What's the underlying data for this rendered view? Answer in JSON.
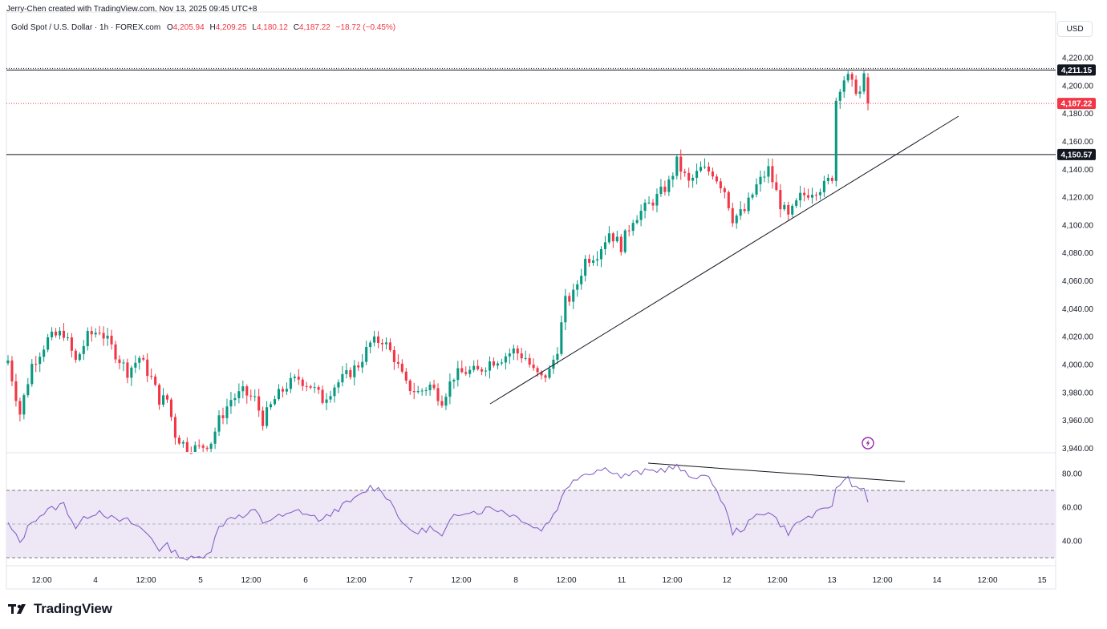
{
  "credit": "Jerry-Chen created with TradingView.com, Nov 13, 2025 09:45 UTC+8",
  "legend": {
    "symbol": "Gold Spot / U.S. Dollar · 1h · FOREX.com",
    "o_label": "O",
    "o": "4,205.94",
    "h_label": "H",
    "h": "4,209.25",
    "l_label": "L",
    "l": "4,180.12",
    "c_label": "C",
    "c": "4,187.22",
    "change": "−18.72 (−0.45%)"
  },
  "currency": "USD",
  "footer": {
    "logo_text": "TradingView"
  },
  "colors": {
    "up": "#089981",
    "down": "#f23645",
    "rsi": "#7e57c2",
    "rsi_band": "#ede7f6"
  },
  "icons": [
    "tradingview-logo-icon",
    "lightning-icon"
  ],
  "chart_data": [
    {
      "type": "candlestick",
      "y_axis_ticks": [
        "4,220.00",
        "4,200.00",
        "4,180.00",
        "4,160.00",
        "4,140.00",
        "4,120.00",
        "4,100.00",
        "4,080.00",
        "4,060.00",
        "4,040.00",
        "4,020.00",
        "4,000.00",
        "3,980.00",
        "3,960.00",
        "3,940.00"
      ],
      "y_axis_values": [
        4220,
        4200,
        4180,
        4160,
        4140,
        4120,
        4100,
        4080,
        4060,
        4040,
        4020,
        4000,
        3980,
        3960,
        3940
      ],
      "ylim": [
        3938,
        4228
      ],
      "x_axis_ticks": [
        "12:00",
        "4",
        "12:00",
        "5",
        "12:00",
        "6",
        "12:00",
        "7",
        "12:00",
        "8",
        "12:00",
        "11",
        "12:00",
        "12",
        "12:00",
        "13",
        "12:00",
        "14",
        "12:00",
        "15"
      ],
      "close_path": [
        [
          0,
          4003
        ],
        [
          3,
          3965
        ],
        [
          6,
          4000
        ],
        [
          10,
          4018
        ],
        [
          14,
          4023
        ],
        [
          17,
          4002
        ],
        [
          20,
          4020
        ],
        [
          23,
          4025
        ],
        [
          27,
          4008
        ],
        [
          30,
          3995
        ],
        [
          33,
          4005
        ],
        [
          36,
          3990
        ],
        [
          38,
          3975
        ],
        [
          40,
          3975
        ],
        [
          42,
          3950
        ],
        [
          45,
          3940
        ],
        [
          48,
          3940
        ],
        [
          51,
          3945
        ],
        [
          53,
          3960
        ],
        [
          56,
          3975
        ],
        [
          59,
          3980
        ],
        [
          62,
          3975
        ],
        [
          64,
          3960
        ],
        [
          67,
          3975
        ],
        [
          70,
          3985
        ],
        [
          73,
          3990
        ],
        [
          76,
          3985
        ],
        [
          79,
          3975
        ],
        [
          82,
          3985
        ],
        [
          85,
          3992
        ],
        [
          88,
          4000
        ],
        [
          91,
          4015
        ],
        [
          94,
          4018
        ],
        [
          97,
          4005
        ],
        [
          100,
          3985
        ],
        [
          103,
          3980
        ],
        [
          106,
          3985
        ],
        [
          109,
          3975
        ],
        [
          112,
          3992
        ],
        [
          115,
          3995
        ],
        [
          118,
          3995
        ],
        [
          121,
          4002
        ],
        [
          124,
          4005
        ],
        [
          127,
          4010
        ],
        [
          130,
          4005
        ],
        [
          132,
          3995
        ],
        [
          134,
          3990
        ],
        [
          136,
          3995
        ],
        [
          138,
          4012
        ],
        [
          140,
          4045
        ],
        [
          142,
          4050
        ],
        [
          145,
          4075
        ],
        [
          148,
          4080
        ],
        [
          151,
          4095
        ],
        [
          154,
          4085
        ],
        [
          157,
          4105
        ],
        [
          160,
          4112
        ],
        [
          163,
          4120
        ],
        [
          166,
          4130
        ],
        [
          168,
          4145
        ],
        [
          171,
          4130
        ],
        [
          174,
          4140
        ],
        [
          177,
          4138
        ],
        [
          180,
          4125
        ],
        [
          182,
          4105
        ],
        [
          185,
          4110
        ],
        [
          188,
          4128
        ],
        [
          191,
          4140
        ],
        [
          194,
          4115
        ],
        [
          196,
          4105
        ],
        [
          199,
          4120
        ],
        [
          202,
          4125
        ],
        [
          205,
          4128
        ],
        [
          207,
          4135
        ],
        [
          208,
          4190
        ],
        [
          209,
          4200
        ],
        [
          210,
          4205
        ],
        [
          211,
          4205
        ],
        [
          212,
          4200
        ],
        [
          213,
          4198
        ],
        [
          214,
          4195
        ],
        [
          215,
          4205
        ],
        [
          216,
          4187
        ]
      ],
      "levels": [
        {
          "value": 4211.15,
          "label": "4,211.15",
          "style": "solid-black"
        },
        {
          "value": 4187.22,
          "label": "4,187.22",
          "style": "dotted-red"
        },
        {
          "value": 4150.57,
          "label": "4,150.57",
          "style": "solid-black"
        }
      ],
      "trendline": {
        "from": [
          611,
          504
        ],
        "to": [
          1195,
          145
        ]
      }
    },
    {
      "type": "line",
      "indicator": "RSI",
      "y_axis_ticks": [
        "80.00",
        "60.00",
        "40.00"
      ],
      "y_axis_values": [
        80,
        60,
        40
      ],
      "ylim": [
        29,
        86
      ],
      "band": [
        30,
        70
      ],
      "midline": 50,
      "path": [
        [
          0,
          50
        ],
        [
          3,
          39
        ],
        [
          6,
          52
        ],
        [
          10,
          58
        ],
        [
          14,
          62
        ],
        [
          17,
          48
        ],
        [
          20,
          55
        ],
        [
          23,
          58
        ],
        [
          27,
          52
        ],
        [
          30,
          52
        ],
        [
          33,
          48
        ],
        [
          36,
          42
        ],
        [
          38,
          35
        ],
        [
          40,
          37
        ],
        [
          42,
          33
        ],
        [
          45,
          29
        ],
        [
          48,
          30
        ],
        [
          51,
          35
        ],
        [
          53,
          48
        ],
        [
          56,
          55
        ],
        [
          59,
          54
        ],
        [
          62,
          58
        ],
        [
          64,
          51
        ],
        [
          67,
          54
        ],
        [
          70,
          55
        ],
        [
          73,
          58
        ],
        [
          76,
          55
        ],
        [
          79,
          52
        ],
        [
          82,
          58
        ],
        [
          85,
          62
        ],
        [
          88,
          66
        ],
        [
          91,
          72
        ],
        [
          94,
          70
        ],
        [
          97,
          60
        ],
        [
          100,
          47
        ],
        [
          103,
          45
        ],
        [
          106,
          48
        ],
        [
          109,
          42
        ],
        [
          112,
          55
        ],
        [
          115,
          58
        ],
        [
          118,
          57
        ],
        [
          121,
          60
        ],
        [
          124,
          58
        ],
        [
          127,
          55
        ],
        [
          130,
          52
        ],
        [
          132,
          48
        ],
        [
          134,
          47
        ],
        [
          136,
          52
        ],
        [
          138,
          60
        ],
        [
          140,
          70
        ],
        [
          142,
          77
        ],
        [
          145,
          80
        ],
        [
          148,
          82
        ],
        [
          151,
          83
        ],
        [
          154,
          78
        ],
        [
          157,
          80
        ],
        [
          160,
          81
        ],
        [
          163,
          82
        ],
        [
          166,
          83
        ],
        [
          168,
          84
        ],
        [
          171,
          78
        ],
        [
          174,
          79
        ],
        [
          177,
          75
        ],
        [
          180,
          60
        ],
        [
          182,
          45
        ],
        [
          185,
          48
        ],
        [
          188,
          55
        ],
        [
          191,
          58
        ],
        [
          194,
          50
        ],
        [
          196,
          45
        ],
        [
          199,
          52
        ],
        [
          202,
          55
        ],
        [
          205,
          58
        ],
        [
          207,
          62
        ],
        [
          208,
          70
        ],
        [
          209,
          74
        ],
        [
          210,
          76
        ],
        [
          211,
          78
        ],
        [
          212,
          74
        ],
        [
          213,
          72
        ],
        [
          214,
          71
        ],
        [
          215,
          73
        ],
        [
          216,
          62
        ]
      ],
      "trendline": {
        "from": [
          808,
          578
        ],
        "to": [
          1128,
          601
        ]
      }
    }
  ]
}
